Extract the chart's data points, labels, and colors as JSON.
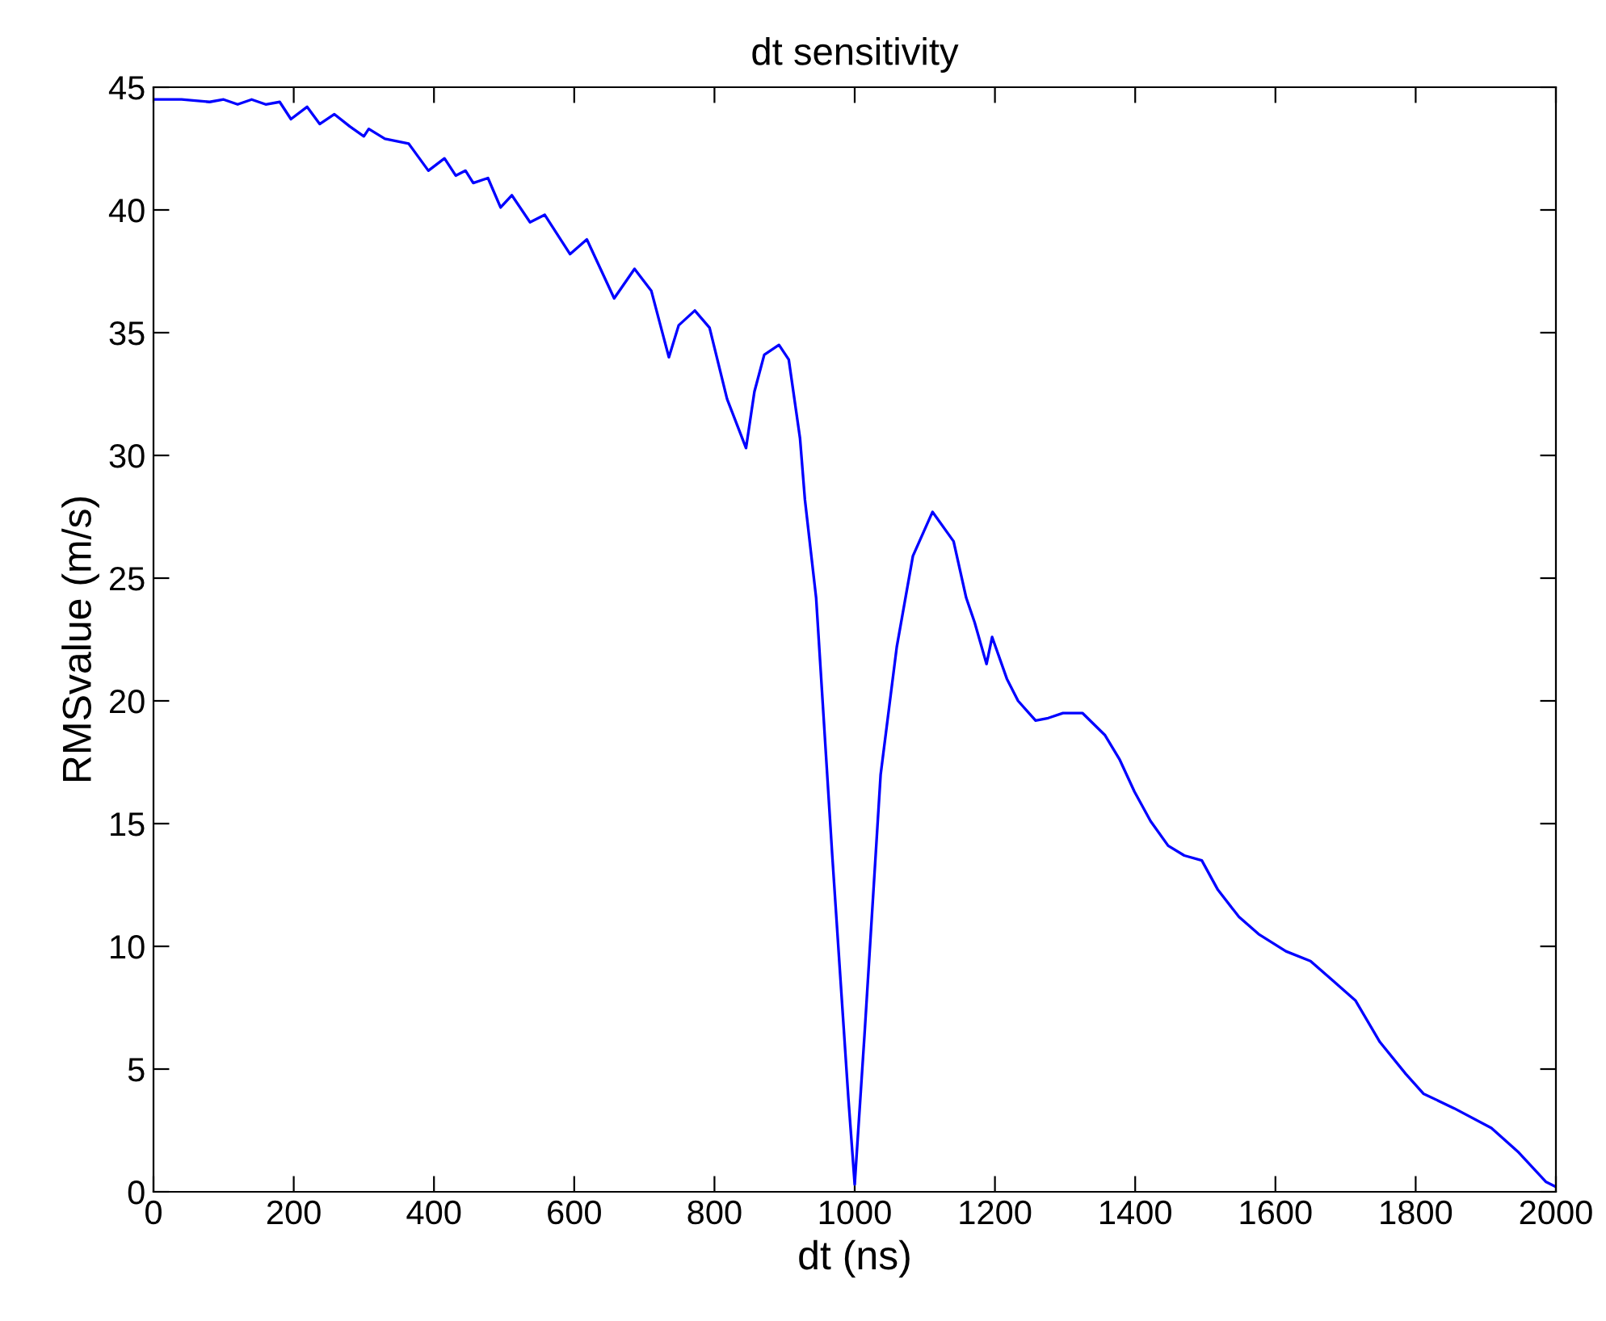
{
  "chart_data": {
    "type": "line",
    "title": "dt sensitivity",
    "xlabel": "dt (ns)",
    "ylabel": "RMSvalue (m/s)",
    "xlim": [
      0,
      2000
    ],
    "xticks": [
      0,
      200,
      400,
      600,
      800,
      1000,
      1200,
      1400,
      1600,
      1800,
      2000
    ],
    "ylim": [
      0,
      45
    ],
    "yticks": [
      0,
      5,
      10,
      15,
      20,
      25,
      30,
      35,
      40,
      45
    ],
    "grid": false,
    "legend": false,
    "marker": "none",
    "line_style": "solid",
    "series": [
      {
        "color": "#0000ff",
        "x": [
          0,
          40,
          80,
          100,
          120,
          140,
          160,
          180,
          196,
          219,
          237,
          258,
          280,
          300,
          307,
          330,
          364,
          392,
          415,
          431,
          445,
          456,
          477,
          495,
          511,
          537,
          558,
          594,
          618,
          657,
          686,
          710,
          735,
          749,
          772,
          793,
          818,
          845,
          857,
          871,
          892,
          906,
          922,
          929,
          945,
          968,
          991,
          1000,
          1014,
          1037,
          1060,
          1083,
          1111,
          1141,
          1159,
          1171,
          1188,
          1196,
          1217,
          1233,
          1258,
          1276,
          1297,
          1325,
          1357,
          1378,
          1399,
          1422,
          1447,
          1470,
          1495,
          1518,
          1548,
          1576,
          1615,
          1650,
          1682,
          1714,
          1749,
          1786,
          1811,
          1855,
          1908,
          1947,
          1986,
          2000
        ],
        "values": [
          44.5,
          44.5,
          44.4,
          44.5,
          44.3,
          44.5,
          44.3,
          44.4,
          43.7,
          44.2,
          43.5,
          43.9,
          43.4,
          43.0,
          43.3,
          42.9,
          42.7,
          41.6,
          42.1,
          41.4,
          41.6,
          41.1,
          41.3,
          40.1,
          40.6,
          39.5,
          39.8,
          38.2,
          38.8,
          36.4,
          37.6,
          36.7,
          34.0,
          35.3,
          35.9,
          35.2,
          32.3,
          30.3,
          32.6,
          34.1,
          34.5,
          33.9,
          30.7,
          28.2,
          24.2,
          13.7,
          3.8,
          0.3,
          6.4,
          17.0,
          22.2,
          25.9,
          27.7,
          26.5,
          24.2,
          23.2,
          21.5,
          22.6,
          20.9,
          20.0,
          19.2,
          19.3,
          19.5,
          19.5,
          18.6,
          17.6,
          16.3,
          15.1,
          14.1,
          13.7,
          13.5,
          12.3,
          11.2,
          10.5,
          9.8,
          9.4,
          8.6,
          7.8,
          6.1,
          4.8,
          4.0,
          3.4,
          2.6,
          1.6,
          0.4,
          0.2
        ]
      }
    ]
  }
}
